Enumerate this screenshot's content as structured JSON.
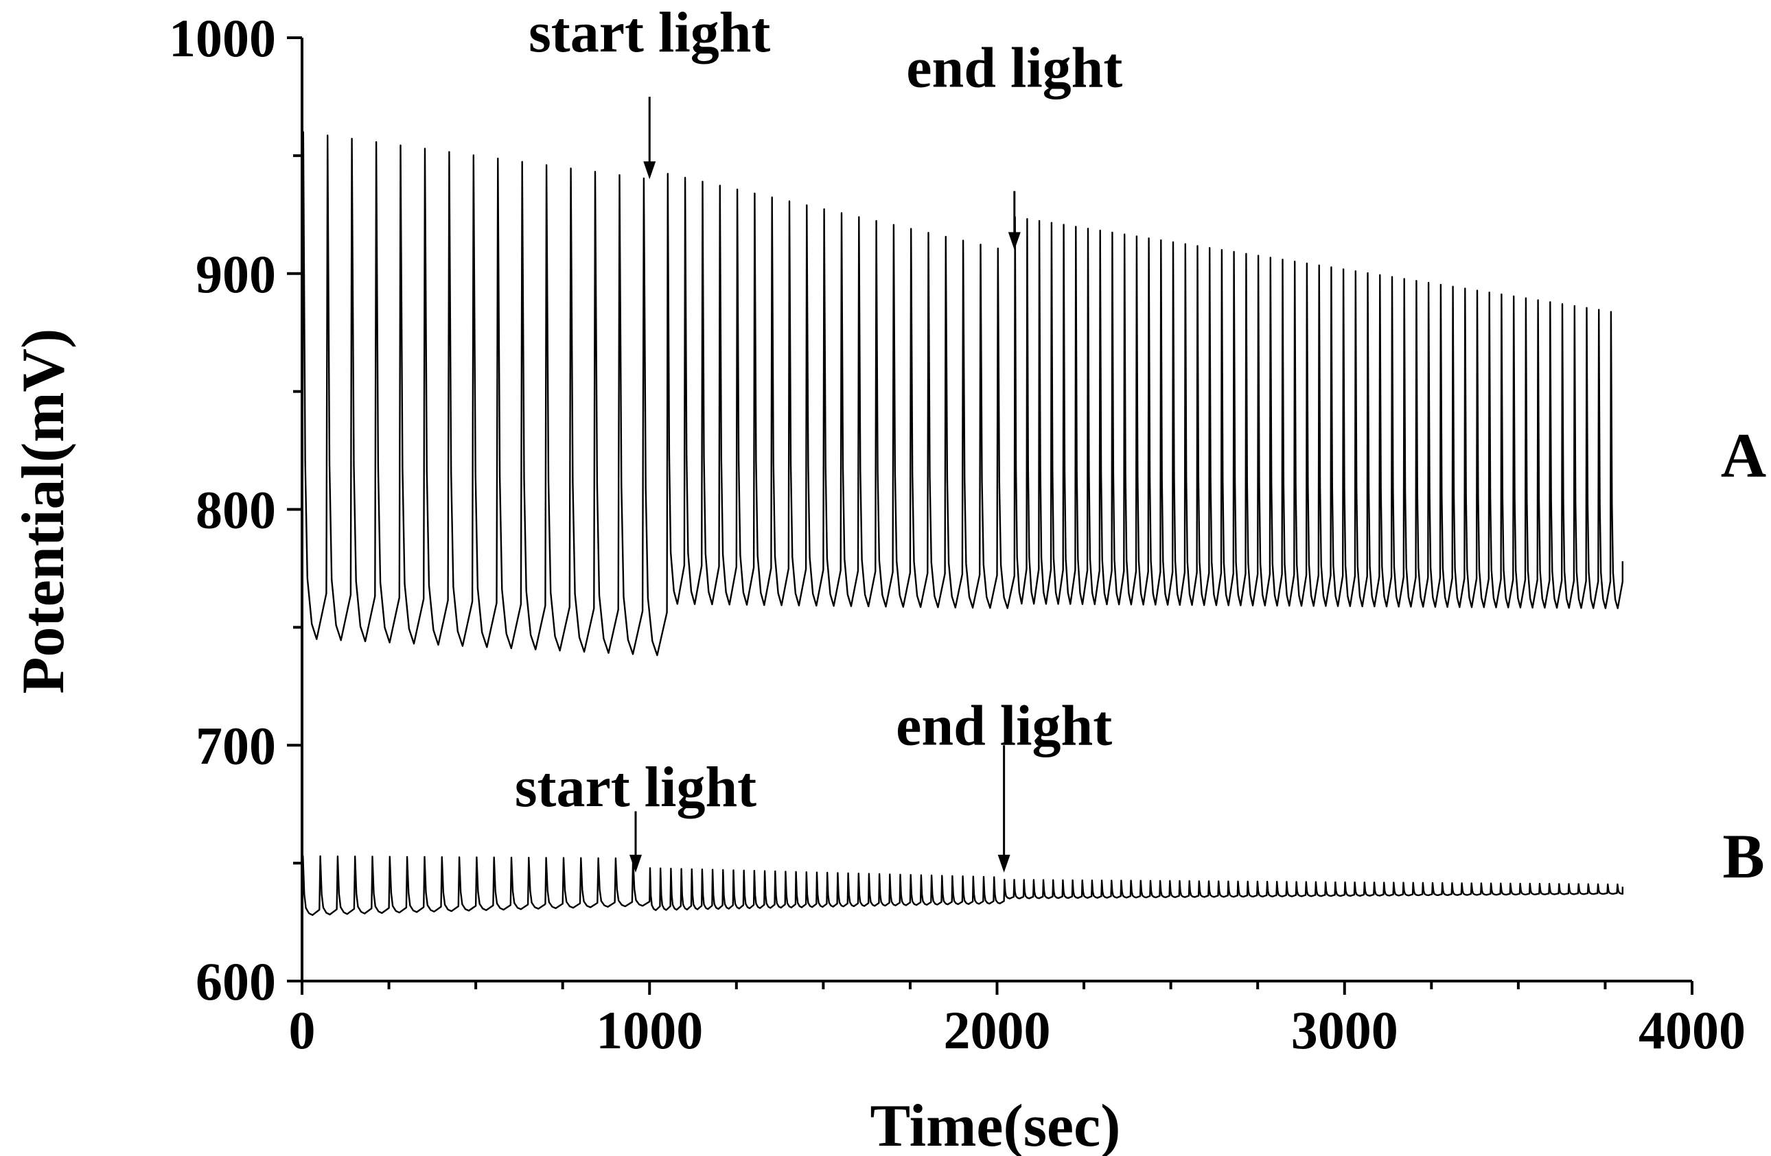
{
  "chart_data": {
    "type": "line",
    "xlabel": "Time(sec)",
    "ylabel": "Potential(mV)",
    "xlim": [
      0,
      4000
    ],
    "ylim": [
      600,
      1000
    ],
    "xticks": [
      0,
      1000,
      2000,
      3000,
      4000
    ],
    "yticks": [
      600,
      700,
      800,
      900,
      1000
    ],
    "x_minor_step": 250,
    "y_minor_step": 50,
    "grid": false,
    "series": [
      {
        "name": "A",
        "sampling": "oscillation peaks and troughs",
        "start_time": 0,
        "end_time": 3800,
        "phases": [
          {
            "t_start": 0,
            "t_end": 1000,
            "period": 70,
            "peak": [
              960,
              940
            ],
            "trough": [
              745,
              738
            ]
          },
          {
            "t_start": 1000,
            "t_end": 2050,
            "period": 50,
            "peak": [
              944,
              909
            ],
            "trough": [
              760,
              758
            ]
          },
          {
            "t_start": 2050,
            "t_end": 3800,
            "period": 35,
            "peak": [
              924,
              883
            ],
            "trough": [
              760,
              758
            ]
          }
        ],
        "end_value": 778
      },
      {
        "name": "B",
        "sampling": "oscillation peaks and troughs",
        "start_time": 0,
        "end_time": 3800,
        "phases": [
          {
            "t_start": 0,
            "t_end": 980,
            "period": 50,
            "peak": [
              653,
              652
            ],
            "trough": [
              628,
              632
            ]
          },
          {
            "t_start": 980,
            "t_end": 2020,
            "period": 30,
            "peak": [
              648,
              644
            ],
            "trough": [
              630,
              633
            ]
          },
          {
            "t_start": 2020,
            "t_end": 3800,
            "period": 28,
            "peak": [
              643,
              641
            ],
            "trough": [
              635,
              637
            ]
          }
        ],
        "end_value": 640
      }
    ],
    "annotations": [
      {
        "text": "start light",
        "series": "A",
        "x": 1000,
        "arrow_top": 975,
        "arrow_tip": 940,
        "text_y": 1000
      },
      {
        "text": "end light",
        "series": "A",
        "x": 2050,
        "arrow_top": 935,
        "arrow_tip": 910,
        "text_y": 985
      },
      {
        "text": "start light",
        "series": "B",
        "x": 960,
        "arrow_top": 672,
        "arrow_tip": 646,
        "text_y": 680
      },
      {
        "text": "end light",
        "series": "B",
        "x": 2020,
        "arrow_top": 700,
        "arrow_tip": 646,
        "text_y": 706
      }
    ],
    "curve_labels": [
      {
        "text": "A",
        "series": "A"
      },
      {
        "text": "B",
        "series": "B"
      }
    ]
  }
}
